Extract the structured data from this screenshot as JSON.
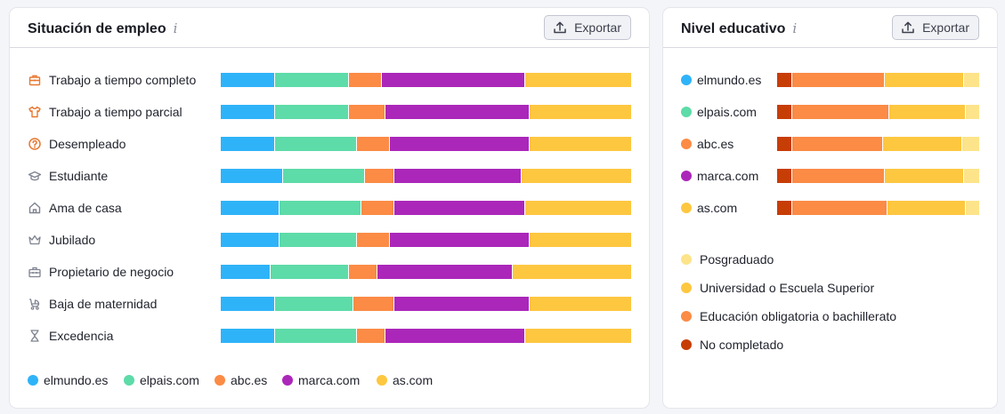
{
  "employment": {
    "title": "Situación de empleo",
    "info_icon": "i",
    "export_label": "Exportar",
    "rows": [
      {
        "label": "Trabajo a tiempo completo",
        "icon": "briefcase-icon",
        "accent": true,
        "values": [
          13,
          18,
          8,
          35,
          26
        ]
      },
      {
        "label": "Trabajo a tiempo parcial",
        "icon": "shirt-icon",
        "accent": true,
        "values": [
          13,
          18,
          9,
          35,
          25
        ]
      },
      {
        "label": "Desempleado",
        "icon": "question-icon",
        "accent": true,
        "values": [
          13,
          20,
          8,
          34,
          25
        ]
      },
      {
        "label": "Estudiante",
        "icon": "graduation-cap-icon",
        "accent": false,
        "values": [
          15,
          20,
          7,
          31,
          27
        ]
      },
      {
        "label": "Ama de casa",
        "icon": "house-icon",
        "accent": false,
        "values": [
          14,
          20,
          8,
          32,
          26
        ]
      },
      {
        "label": "Jubilado",
        "icon": "crown-icon",
        "accent": false,
        "values": [
          14,
          19,
          8,
          34,
          25
        ]
      },
      {
        "label": "Propietario de negocio",
        "icon": "toolbox-icon",
        "accent": false,
        "values": [
          12,
          19,
          7,
          33,
          29
        ]
      },
      {
        "label": "Baja de maternidad",
        "icon": "stroller-icon",
        "accent": false,
        "values": [
          13,
          19,
          10,
          33,
          25
        ]
      },
      {
        "label": "Excedencia",
        "icon": "hourglass-icon",
        "accent": false,
        "values": [
          13,
          20,
          7,
          34,
          26
        ]
      }
    ],
    "legend": [
      "elmundo.es",
      "elpais.com",
      "abc.es",
      "marca.com",
      "as.com"
    ],
    "colors": [
      "#2fb3f8",
      "#5ddba8",
      "#fb8b45",
      "#ab27b9",
      "#fdc740"
    ]
  },
  "education": {
    "title": "Nivel educativo",
    "info_icon": "i",
    "export_label": "Exportar",
    "rows": [
      {
        "label": "elmundo.es",
        "color": "#2fb3f8",
        "values": [
          7,
          46,
          39,
          8
        ]
      },
      {
        "label": "elpais.com",
        "color": "#5ddba8",
        "values": [
          7,
          48,
          38,
          7
        ]
      },
      {
        "label": "abc.es",
        "color": "#fb8b45",
        "values": [
          7,
          45,
          39,
          9
        ]
      },
      {
        "label": "marca.com",
        "color": "#ab27b9",
        "values": [
          7,
          46,
          39,
          8
        ]
      },
      {
        "label": "as.com",
        "color": "#fdc740",
        "values": [
          7,
          47,
          39,
          7
        ]
      }
    ],
    "legend": [
      "Posgraduado",
      "Universidad o Escuela Superior",
      "Educación obligatoria o bachillerato",
      "No completado"
    ],
    "legend_colors": [
      "#fde48a",
      "#fdc740",
      "#fb8b45",
      "#c73d06"
    ],
    "segment_colors": [
      "#c73d06",
      "#fb8b45",
      "#fdc740",
      "#fde48a"
    ]
  },
  "chart_data": [
    {
      "type": "bar",
      "title": "Situación de empleo",
      "stacked": true,
      "orientation": "horizontal",
      "categories": [
        "Trabajo a tiempo completo",
        "Trabajo a tiempo parcial",
        "Desempleado",
        "Estudiante",
        "Ama de casa",
        "Jubilado",
        "Propietario de negocio",
        "Baja de maternidad",
        "Excedencia"
      ],
      "series": [
        {
          "name": "elmundo.es",
          "values": [
            13,
            13,
            13,
            15,
            14,
            14,
            12,
            13,
            13
          ]
        },
        {
          "name": "elpais.com",
          "values": [
            18,
            18,
            20,
            20,
            20,
            19,
            19,
            19,
            20
          ]
        },
        {
          "name": "abc.es",
          "values": [
            8,
            9,
            8,
            7,
            8,
            8,
            7,
            10,
            7
          ]
        },
        {
          "name": "marca.com",
          "values": [
            35,
            35,
            34,
            31,
            32,
            34,
            33,
            33,
            34
          ]
        },
        {
          "name": "as.com",
          "values": [
            26,
            25,
            25,
            27,
            26,
            25,
            29,
            25,
            26
          ]
        }
      ],
      "legend_position": "bottom"
    },
    {
      "type": "bar",
      "title": "Nivel educativo",
      "stacked": true,
      "orientation": "horizontal",
      "categories": [
        "elmundo.es",
        "elpais.com",
        "abc.es",
        "marca.com",
        "as.com"
      ],
      "series": [
        {
          "name": "No completado",
          "values": [
            7,
            7,
            7,
            7,
            7
          ]
        },
        {
          "name": "Educación obligatoria o bachillerato",
          "values": [
            46,
            48,
            45,
            46,
            47
          ]
        },
        {
          "name": "Universidad o Escuela Superior",
          "values": [
            39,
            38,
            39,
            39,
            39
          ]
        },
        {
          "name": "Posgraduado",
          "values": [
            8,
            7,
            9,
            8,
            7
          ]
        }
      ],
      "legend_position": "right-bottom"
    }
  ]
}
